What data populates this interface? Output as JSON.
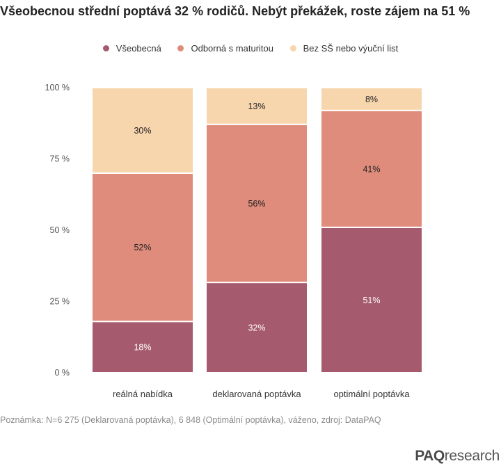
{
  "chart_data": {
    "type": "bar",
    "stacked": true,
    "title": "Všeobecnou střední poptává 32 % rodičů. Nebýt překážek, roste zájem na 51 %",
    "categories": [
      "reálná nabídka",
      "deklarovaná poptávka",
      "optimální poptávka"
    ],
    "series": [
      {
        "name": "Všeobecná",
        "color": "#a65a6e",
        "label_color": "#ffffff",
        "values": [
          18,
          32,
          51
        ],
        "labels": [
          "18%",
          "32%",
          "51%"
        ]
      },
      {
        "name": "Odborná s maturitou",
        "color": "#e08c7c",
        "label_color": "#222222",
        "values": [
          52,
          56,
          41
        ],
        "labels": [
          "52%",
          "56%",
          "41%"
        ]
      },
      {
        "name": "Bez SŠ nebo výuční list",
        "color": "#f7d5ad",
        "label_color": "#222222",
        "values": [
          30,
          13,
          8
        ],
        "labels": [
          "30%",
          "13%",
          "8%"
        ]
      }
    ],
    "ylim": [
      0,
      100
    ],
    "yticks": [
      0,
      25,
      50,
      75,
      100
    ],
    "ytick_labels": [
      "0 %",
      "25 %",
      "50 %",
      "75 %",
      "100 %"
    ],
    "legend_position": "top-center",
    "grid": false
  },
  "note": "Poznámka: N=6 275 (Deklarovaná poptávka), 6 848 (Optimální poptávka), váženo, zdroj: DataPAQ",
  "logo": {
    "part1": "PAQ",
    "part2": "research"
  }
}
